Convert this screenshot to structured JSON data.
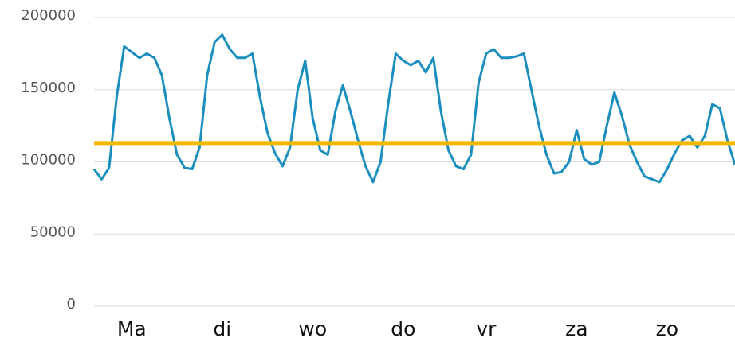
{
  "chart_data": {
    "type": "line",
    "categories": [
      null,
      null,
      null,
      null,
      null,
      "Ma",
      null,
      null,
      null,
      null,
      null,
      null,
      null,
      null,
      null,
      null,
      null,
      "di",
      null,
      null,
      null,
      null,
      null,
      null,
      null,
      null,
      null,
      null,
      null,
      "wo",
      null,
      null,
      null,
      null,
      null,
      null,
      null,
      null,
      null,
      null,
      null,
      "do",
      null,
      null,
      null,
      null,
      null,
      null,
      null,
      null,
      null,
      null,
      "vr",
      null,
      null,
      null,
      null,
      null,
      null,
      null,
      null,
      null,
      null,
      null,
      "za",
      null,
      null,
      null,
      null,
      null,
      null,
      null,
      null,
      null,
      null,
      null,
      "zo",
      null,
      null,
      null,
      null,
      null,
      null,
      null,
      null,
      null
    ],
    "series": [
      {
        "color": "#1a8fbf",
        "values": [
          95000,
          88000,
          96000,
          145000,
          180000,
          176000,
          172000,
          175000,
          172000,
          160000,
          130000,
          105000,
          96000,
          95000,
          110000,
          160000,
          183000,
          188000,
          178000,
          172000,
          172000,
          175000,
          145000,
          120000,
          106000,
          97000,
          110000,
          150000,
          170000,
          130000,
          108000,
          105000,
          135000,
          153000,
          135000,
          115000,
          97000,
          86000,
          100000,
          140000,
          175000,
          170000,
          167000,
          170000,
          162000,
          172000,
          135000,
          108000,
          97000,
          95000,
          105000,
          155000,
          175000,
          178000,
          172000,
          172000,
          173000,
          175000,
          150000,
          125000,
          105000,
          92000,
          93000,
          100000,
          122000,
          102000,
          98000,
          100000,
          125000,
          148000,
          132000,
          112000,
          100000,
          90000,
          88000,
          86000,
          95000,
          106000,
          115000,
          118000,
          110000,
          118000,
          140000,
          137000,
          115000,
          98000
        ]
      }
    ],
    "reference_line": {
      "value": 113000,
      "color": "#f5b800"
    },
    "ylim": [
      0,
      200000
    ],
    "yticks": [
      0,
      50000,
      100000,
      150000,
      200000
    ],
    "grid": true
  }
}
